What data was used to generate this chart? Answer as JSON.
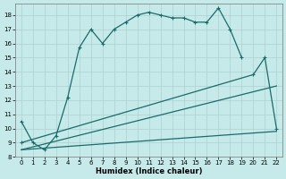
{
  "xlabel": "Humidex (Indice chaleur)",
  "background_color": "#c6eaea",
  "grid_color": "#aed0d0",
  "line_color": "#1a6b6b",
  "xlim": [
    -0.5,
    22.5
  ],
  "ylim": [
    8,
    18.8
  ],
  "yticks": [
    8,
    9,
    10,
    11,
    12,
    13,
    14,
    15,
    16,
    17,
    18
  ],
  "xticks": [
    0,
    1,
    2,
    3,
    4,
    5,
    6,
    7,
    8,
    9,
    10,
    11,
    12,
    13,
    14,
    15,
    16,
    17,
    18,
    19,
    20,
    21,
    22
  ],
  "line1_x": [
    0,
    1,
    2,
    3,
    4,
    5,
    6,
    7,
    8,
    9,
    10,
    11,
    12,
    13,
    14,
    15,
    16,
    17,
    18,
    19
  ],
  "line1_y": [
    10.5,
    9.0,
    8.5,
    9.5,
    12.2,
    15.7,
    17.0,
    16.0,
    17.0,
    17.5,
    18.0,
    18.2,
    18.0,
    17.8,
    17.8,
    17.5,
    17.5,
    18.5,
    17.0,
    15.0
  ],
  "line2_x": [
    0,
    20,
    21,
    22
  ],
  "line2_y": [
    9.0,
    13.8,
    15.0,
    10.0
  ],
  "line3_x": [
    0,
    22
  ],
  "line3_y": [
    8.5,
    13.0
  ],
  "line4_x": [
    0,
    22
  ],
  "line4_y": [
    8.5,
    9.8
  ]
}
